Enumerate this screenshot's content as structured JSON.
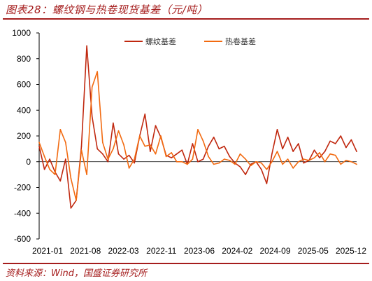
{
  "header": {
    "title": "图表28：螺纹钢与热卷现货基差（元/吨）"
  },
  "footer": {
    "source": "资料来源：Wind，国盛证券研究所"
  },
  "chart_data": {
    "type": "line",
    "title": "图表28：螺纹钢与热卷现货基差（元/吨）",
    "ylim": [
      -600,
      1000
    ],
    "yticks": [
      -600,
      -400,
      -200,
      0,
      200,
      400,
      600,
      800,
      1000
    ],
    "xticks": [
      "2021-01",
      "2021-08",
      "2022-03",
      "2022-11",
      "2023-06",
      "2024-02",
      "2024-09",
      "2025-05",
      "2025-12"
    ],
    "xlim": [
      "2021-01",
      "2026-01"
    ],
    "grid": false,
    "legend": "top",
    "colors": {
      "螺纹基差": "#c0280f",
      "热卷基差": "#f26a10"
    },
    "series": [
      {
        "name": "螺纹基差",
        "color": "#c0280f",
        "x": [
          "2021-01",
          "2021-02",
          "2021-03",
          "2021-04",
          "2021-05",
          "2021-06",
          "2021-07",
          "2021-08",
          "2021-09",
          "2021-10",
          "2021-11",
          "2021-12",
          "2022-01",
          "2022-02",
          "2022-03",
          "2022-04",
          "2022-05",
          "2022-06",
          "2022-07",
          "2022-08",
          "2022-09",
          "2022-10",
          "2022-11",
          "2022-12",
          "2023-01",
          "2023-02",
          "2023-03",
          "2023-04",
          "2023-05",
          "2023-06",
          "2023-07",
          "2023-08",
          "2023-09",
          "2023-10",
          "2023-11",
          "2023-12",
          "2024-01",
          "2024-02",
          "2024-03",
          "2024-04",
          "2024-05",
          "2024-06",
          "2024-07",
          "2024-08",
          "2024-09",
          "2024-10",
          "2024-11",
          "2024-12",
          "2025-01",
          "2025-02",
          "2025-03",
          "2025-04",
          "2025-05",
          "2025-06",
          "2025-07",
          "2025-08",
          "2025-09",
          "2025-10",
          "2025-11",
          "2025-12",
          "2026-01"
        ],
        "values": [
          120,
          -60,
          20,
          -80,
          -150,
          20,
          -360,
          -300,
          120,
          900,
          350,
          100,
          60,
          0,
          300,
          60,
          20,
          50,
          -10,
          200,
          370,
          80,
          280,
          190,
          50,
          30,
          60,
          90,
          -20,
          140,
          0,
          20,
          120,
          190,
          100,
          120,
          40,
          -10,
          -40,
          -100,
          -20,
          0,
          -60,
          -170,
          60,
          250,
          100,
          190,
          80,
          140,
          -10,
          10,
          90,
          30,
          80,
          160,
          140,
          200,
          110,
          170,
          80
        ]
      },
      {
        "name": "热卷基差",
        "color": "#f26a10",
        "x": [
          "2021-01",
          "2021-02",
          "2021-03",
          "2021-04",
          "2021-05",
          "2021-06",
          "2021-07",
          "2021-08",
          "2021-09",
          "2021-10",
          "2021-11",
          "2021-12",
          "2022-01",
          "2022-02",
          "2022-03",
          "2022-04",
          "2022-05",
          "2022-06",
          "2022-07",
          "2022-08",
          "2022-09",
          "2022-10",
          "2022-11",
          "2022-12",
          "2023-01",
          "2023-02",
          "2023-03",
          "2023-04",
          "2023-05",
          "2023-06",
          "2023-07",
          "2023-08",
          "2023-09",
          "2023-10",
          "2023-11",
          "2023-12",
          "2024-01",
          "2024-02",
          "2024-03",
          "2024-04",
          "2024-05",
          "2024-06",
          "2024-07",
          "2024-08",
          "2024-09",
          "2024-10",
          "2024-11",
          "2024-12",
          "2025-01",
          "2025-02",
          "2025-03",
          "2025-04",
          "2025-05",
          "2025-06",
          "2025-07",
          "2025-08",
          "2025-09",
          "2025-10",
          "2025-11",
          "2025-12",
          "2026-01"
        ],
        "values": [
          150,
          40,
          -60,
          -100,
          250,
          150,
          -130,
          -300,
          90,
          -100,
          580,
          700,
          150,
          20,
          100,
          240,
          130,
          -50,
          20,
          200,
          120,
          130,
          60,
          200,
          40,
          70,
          0,
          0,
          -20,
          20,
          250,
          160,
          40,
          -20,
          -10,
          20,
          10,
          -20,
          60,
          20,
          -30,
          0,
          -10,
          -60,
          0,
          80,
          -20,
          20,
          -50,
          0,
          20,
          10,
          30,
          70,
          0,
          60,
          50,
          -20,
          10,
          0,
          -20
        ]
      }
    ]
  }
}
